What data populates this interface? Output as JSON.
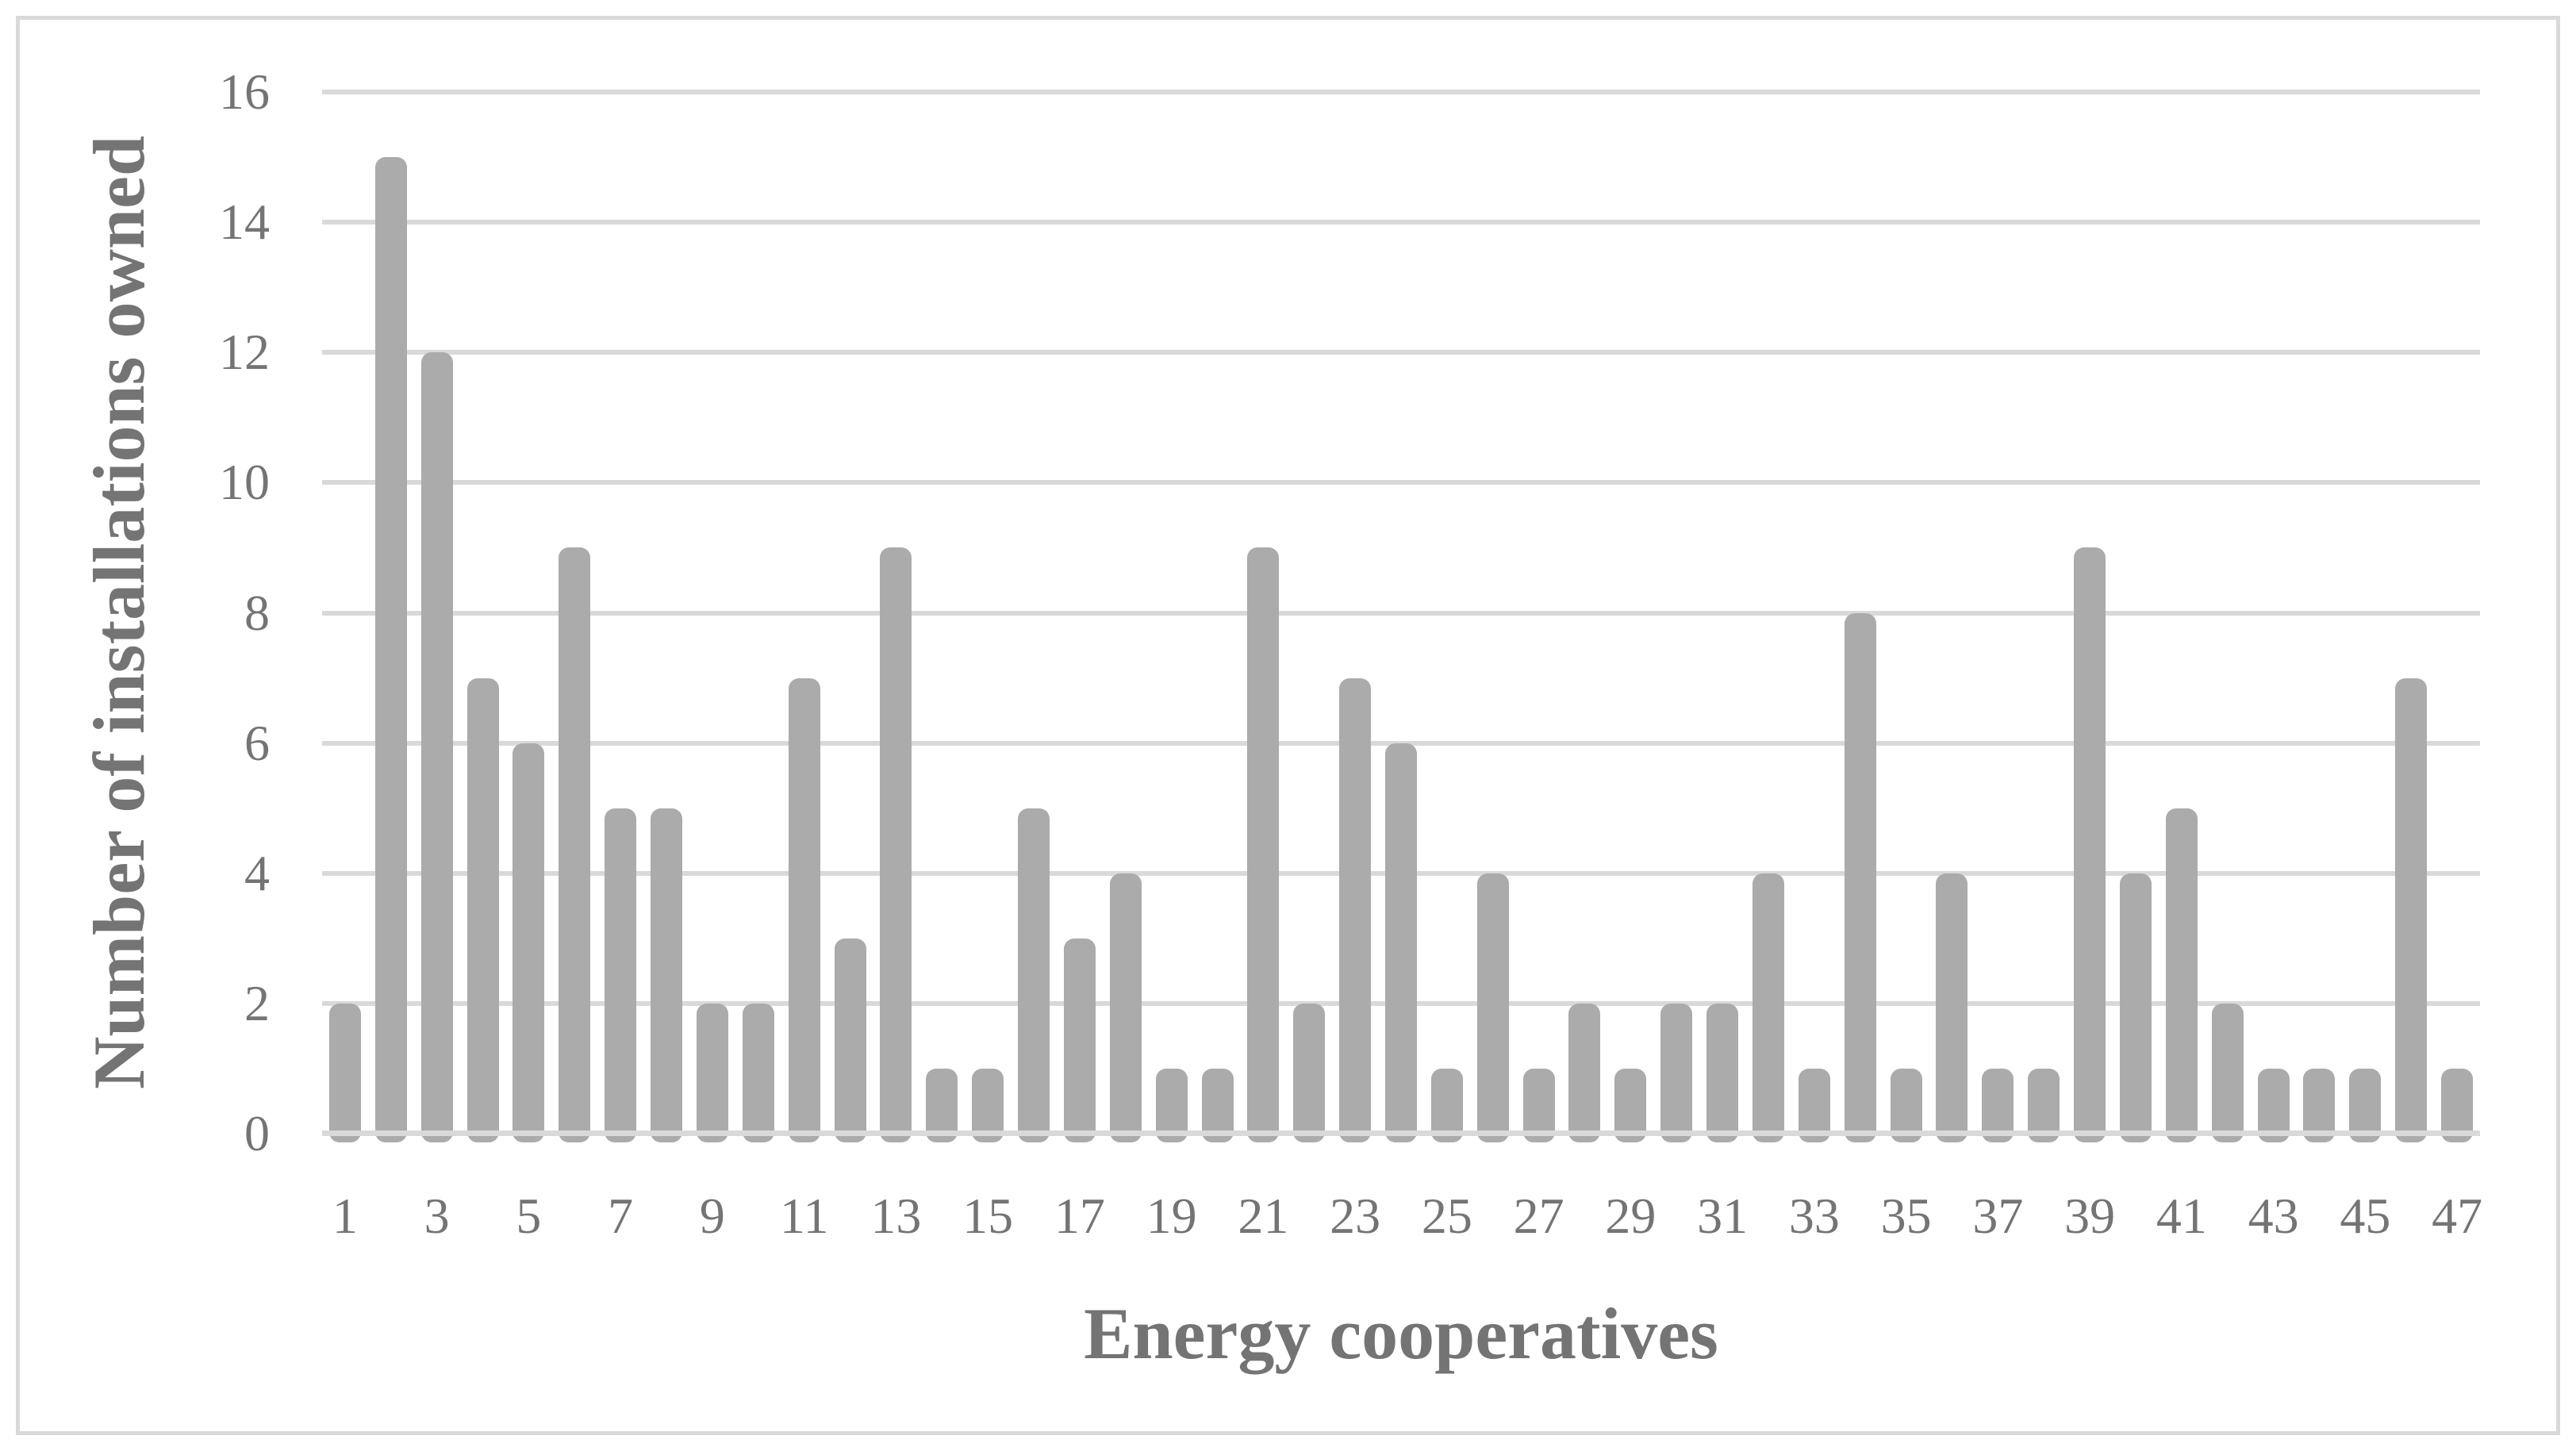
{
  "chart_data": {
    "type": "bar",
    "categories": [
      1,
      2,
      3,
      4,
      5,
      6,
      7,
      8,
      9,
      10,
      11,
      12,
      13,
      14,
      15,
      16,
      17,
      18,
      19,
      20,
      21,
      22,
      23,
      24,
      25,
      26,
      27,
      28,
      29,
      30,
      31,
      32,
      33,
      34,
      35,
      36,
      37,
      38,
      39,
      40,
      41,
      42,
      43,
      44,
      45,
      46,
      47
    ],
    "values": [
      2,
      15,
      12,
      7,
      6,
      9,
      5,
      5,
      2,
      2,
      7,
      3,
      9,
      1,
      1,
      5,
      3,
      4,
      1,
      1,
      9,
      2,
      7,
      6,
      1,
      4,
      1,
      2,
      1,
      2,
      2,
      4,
      1,
      8,
      1,
      4,
      1,
      1,
      9,
      4,
      5,
      2,
      1,
      1,
      1,
      7,
      1
    ],
    "title": "",
    "xlabel": "Energy cooperatives",
    "ylabel": "Number of installations owned",
    "ylim": [
      0,
      16
    ],
    "ytick_step": 2,
    "ytick_labels": [
      "0",
      "2",
      "4",
      "6",
      "8",
      "10",
      "12",
      "14",
      "16"
    ],
    "xtick_labels": [
      "1",
      "3",
      "5",
      "7",
      "9",
      "11",
      "13",
      "15",
      "17",
      "19",
      "21",
      "23",
      "25",
      "27",
      "29",
      "31",
      "33",
      "35",
      "37",
      "39",
      "41",
      "43",
      "45",
      "47"
    ],
    "legend": "none",
    "grid": "horizontal",
    "style": {
      "bar_color": "#ababab",
      "grid_color": "#d9d9d9",
      "axis_line_color": "#d9d9d9",
      "frame_color": "#d9d9d9",
      "text_color": "#747474",
      "background": "#ffffff"
    }
  }
}
